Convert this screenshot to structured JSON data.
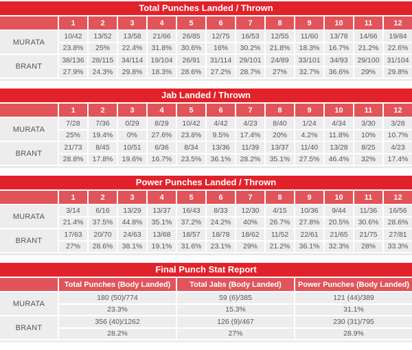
{
  "colors": {
    "title_bar_red": "#e2222a",
    "header_cell_red": "#e0545a",
    "cell_background": "#ededed",
    "body_text": "#545456",
    "header_text": "#ffffff"
  },
  "fighters": [
    "MURATA",
    "BRANT"
  ],
  "tables": [
    {
      "title": "Total Punches Landed / Thrown",
      "columns": [
        "1",
        "2",
        "3",
        "4",
        "5",
        "6",
        "7",
        "8",
        "9",
        "10",
        "11",
        "12"
      ],
      "rows": [
        {
          "name": "MURATA",
          "values": [
            "10/42",
            "13/52",
            "13/58",
            "21/66",
            "26/85",
            "12/75",
            "16/53",
            "12/55",
            "11/60",
            "13/78",
            "14/66",
            "19/84"
          ],
          "percents": [
            "23.8%",
            "25%",
            "22.4%",
            "31.8%",
            "30.6%",
            "16%",
            "30.2%",
            "21.8%",
            "18.3%",
            "16.7%",
            "21.2%",
            "22.6%"
          ]
        },
        {
          "name": "BRANT",
          "values": [
            "38/136",
            "28/115",
            "34/114",
            "19/104",
            "26/91",
            "31/114",
            "29/101",
            "24/89",
            "33/101",
            "34/93",
            "29/100",
            "31/104"
          ],
          "percents": [
            "27.9%",
            "24.3%",
            "29.8%",
            "18.3%",
            "28.6%",
            "27.2%",
            "28.7%",
            "27%",
            "32.7%",
            "36.6%",
            "29%",
            "29.8%"
          ]
        }
      ]
    },
    {
      "title": "Jab Landed / Thrown",
      "columns": [
        "1",
        "2",
        "3",
        "4",
        "5",
        "6",
        "7",
        "8",
        "9",
        "10",
        "11",
        "12"
      ],
      "rows": [
        {
          "name": "MURATA",
          "values": [
            "7/28",
            "7/36",
            "0/29",
            "8/29",
            "10/42",
            "4/42",
            "4/23",
            "8/40",
            "1/24",
            "4/34",
            "3/30",
            "3/28"
          ],
          "percents": [
            "25%",
            "19.4%",
            "0%",
            "27.6%",
            "23.8%",
            "9.5%",
            "17.4%",
            "20%",
            "4.2%",
            "11.8%",
            "10%",
            "10.7%"
          ]
        },
        {
          "name": "BRANT",
          "values": [
            "21/73",
            "8/45",
            "10/51",
            "6/36",
            "8/34",
            "13/36",
            "11/39",
            "13/37",
            "11/40",
            "13/28",
            "8/25",
            "4/23"
          ],
          "percents": [
            "28.8%",
            "17.8%",
            "19.6%",
            "16.7%",
            "23.5%",
            "36.1%",
            "28.2%",
            "35.1%",
            "27.5%",
            "46.4%",
            "32%",
            "17.4%"
          ]
        }
      ]
    },
    {
      "title": "Power Punches Landed / Thrown",
      "columns": [
        "1",
        "2",
        "3",
        "4",
        "5",
        "6",
        "7",
        "8",
        "9",
        "10",
        "11",
        "12"
      ],
      "rows": [
        {
          "name": "MURATA",
          "values": [
            "3/14",
            "6/16",
            "13/29",
            "13/37",
            "16/43",
            "8/33",
            "12/30",
            "4/15",
            "10/36",
            "9/44",
            "11/36",
            "16/56"
          ],
          "percents": [
            "21.4%",
            "37.5%",
            "44.8%",
            "35.1%",
            "37.2%",
            "24.2%",
            "40%",
            "26.7%",
            "27.8%",
            "20.5%",
            "30.6%",
            "28.6%"
          ]
        },
        {
          "name": "BRANT",
          "values": [
            "17/63",
            "20/70",
            "24/63",
            "13/68",
            "18/57",
            "18/78",
            "18/62",
            "11/52",
            "22/61",
            "21/65",
            "21/75",
            "27/81"
          ],
          "percents": [
            "27%",
            "28.6%",
            "38.1%",
            "19.1%",
            "31.6%",
            "23.1%",
            "29%",
            "21.2%",
            "36.1%",
            "32.3%",
            "28%",
            "33.3%"
          ]
        }
      ]
    },
    {
      "title": "Final Punch Stat Report",
      "columns": [
        "Total Punches (Body Landed)",
        "Total Jabs (Body Landed)",
        "Power Punches (Body Landed)"
      ],
      "rows": [
        {
          "name": "MURATA",
          "values": [
            "180 (50)/774",
            "59 (6)/385",
            "121 (44)/389"
          ],
          "percents": [
            "23.3%",
            "15.3%",
            "31.1%"
          ]
        },
        {
          "name": "BRANT",
          "values": [
            "356 (40)/1262",
            "126 (9)/467",
            "230 (31)/795"
          ],
          "percents": [
            "28.2%",
            "27%",
            "28.9%"
          ]
        }
      ]
    }
  ]
}
